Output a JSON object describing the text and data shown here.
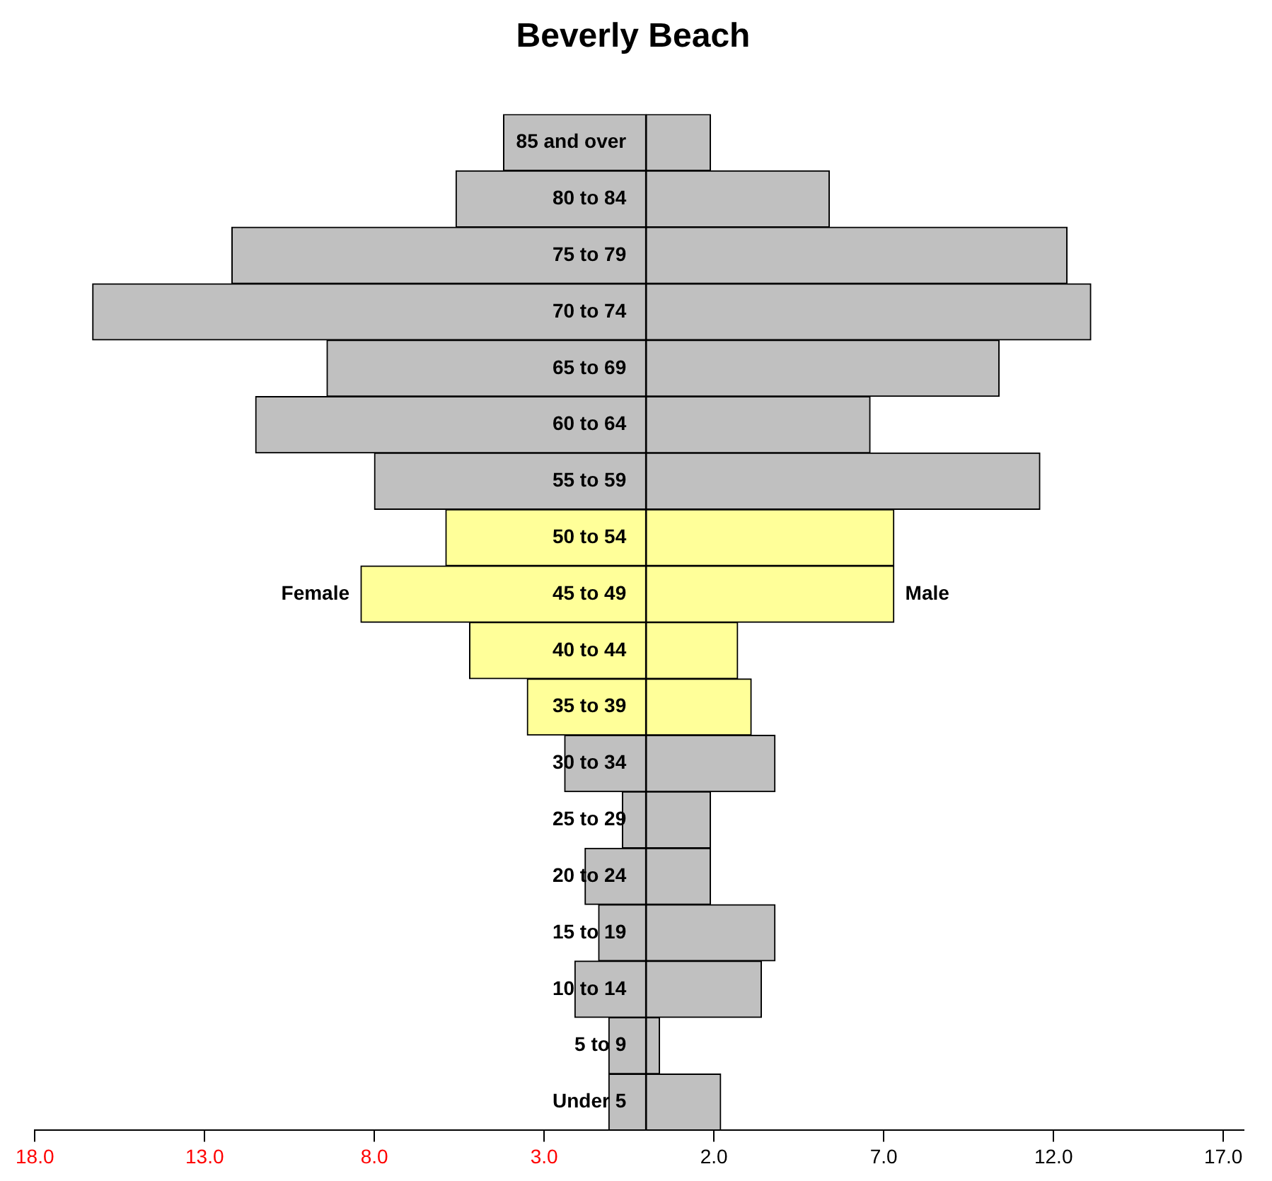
{
  "chart_data": {
    "type": "bar",
    "orientation": "horizontal",
    "stacked": true,
    "title": "Beverly Beach",
    "categories": [
      "85 and over",
      "80 to 84",
      "75 to 79",
      "70 to 74",
      "65 to 69",
      "60 to 64",
      "55 to 59",
      "50 to 54",
      "45 to 49",
      "40 to 44",
      "35 to 39",
      "30 to 34",
      "25 to 29",
      "20 to 24",
      "15 to 19",
      "10 to 14",
      "5 to 9",
      "Under 5"
    ],
    "series": [
      {
        "name": "Female",
        "values": [
          -4.2,
          -5.6,
          -12.2,
          -16.3,
          -9.4,
          -11.5,
          -8.0,
          -5.9,
          -8.4,
          -5.2,
          -3.5,
          -2.4,
          -0.7,
          -1.8,
          -1.4,
          -2.1,
          -1.1,
          -1.1
        ],
        "colors": [
          "#c0c0c0",
          "#c0c0c0",
          "#c0c0c0",
          "#c0c0c0",
          "#c0c0c0",
          "#c0c0c0",
          "#c0c0c0",
          "#ffff99",
          "#ffff99",
          "#ffff99",
          "#ffff99",
          "#c0c0c0",
          "#c0c0c0",
          "#c0c0c0",
          "#c0c0c0",
          "#c0c0c0",
          "#c0c0c0",
          "#c0c0c0"
        ]
      },
      {
        "name": "Male",
        "values": [
          1.9,
          5.4,
          12.4,
          13.1,
          10.4,
          6.6,
          11.6,
          7.3,
          7.3,
          2.7,
          3.1,
          3.8,
          1.9,
          1.9,
          3.8,
          3.4,
          0.4,
          2.2
        ],
        "colors": [
          "#c0c0c0",
          "#c0c0c0",
          "#c0c0c0",
          "#c0c0c0",
          "#c0c0c0",
          "#c0c0c0",
          "#c0c0c0",
          "#ffff99",
          "#ffff99",
          "#ffff99",
          "#ffff99",
          "#c0c0c0",
          "#c0c0c0",
          "#c0c0c0",
          "#c0c0c0",
          "#c0c0c0",
          "#c0c0c0",
          "#c0c0c0"
        ]
      }
    ],
    "xlim": [
      -18,
      17.6
    ],
    "xticks": [
      {
        "value": -18,
        "label": "18.0"
      },
      {
        "value": -13,
        "label": "13.0"
      },
      {
        "value": -8,
        "label": "8.0"
      },
      {
        "value": -3,
        "label": "3.0"
      },
      {
        "value": 2,
        "label": "2.0"
      },
      {
        "value": 7,
        "label": "7.0"
      },
      {
        "value": 12,
        "label": "12.0"
      },
      {
        "value": 17,
        "label": "17.0"
      }
    ],
    "grid": false,
    "legend": false
  }
}
